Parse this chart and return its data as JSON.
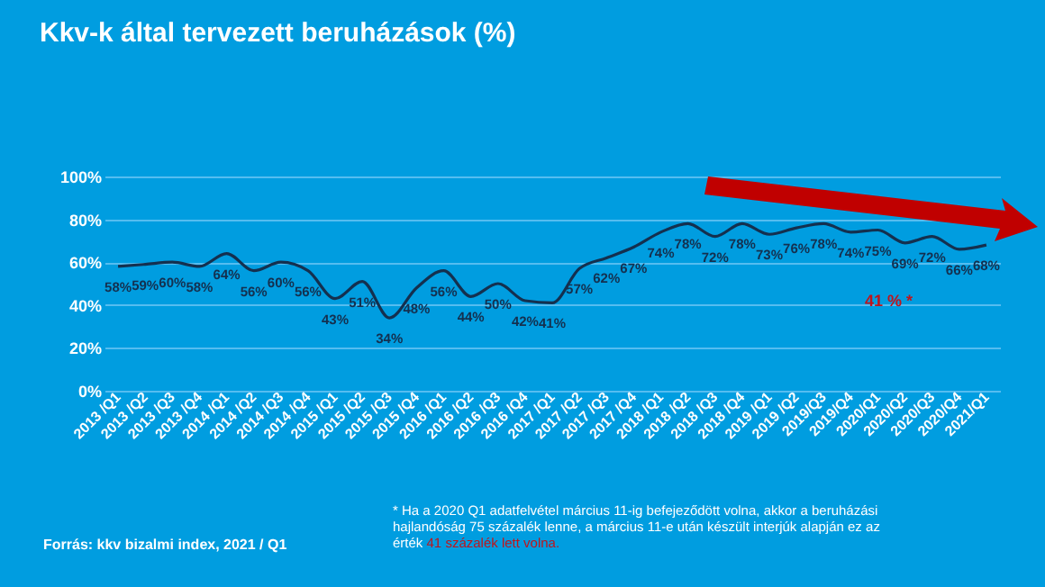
{
  "chart_data": {
    "type": "line",
    "title": "Kkv-k által tervezett beruházások (%)",
    "categories": [
      "2013 /Q1",
      "2013 /Q2",
      "2013 /Q3",
      "2013 /Q4",
      "2014 /Q1",
      "2014 /Q2",
      "2014 /Q3",
      "2014 /Q4",
      "2015 /Q1",
      "2015 /Q2",
      "2015 /Q3",
      "2015 /Q4",
      "2016 /Q1",
      "2016 /Q2",
      "2016 /Q3",
      "2016 /Q4",
      "2017 /Q1",
      "2017 /Q2",
      "2017 /Q3",
      "2017 /Q4",
      "2018 /Q1",
      "2018 /Q2",
      "2018 /Q3",
      "2018 /Q4",
      "2019 /Q1",
      "2019 /Q2",
      "2019/Q3",
      "2019/Q4",
      "2020/Q1",
      "2020/Q2",
      "2020/Q3",
      "2020/Q4",
      "2021/Q1"
    ],
    "series": [
      {
        "color": "#14304f",
        "values": [
          58,
          59,
          60,
          58,
          64,
          56,
          60,
          56,
          43,
          51,
          34,
          48,
          56,
          44,
          50,
          42,
          41,
          57,
          62,
          67,
          74,
          78,
          72,
          78,
          73,
          76,
          78,
          74,
          75,
          69,
          72,
          66,
          68
        ],
        "value_labels": [
          "58%",
          "59%",
          "60%",
          "58%",
          "64%",
          "56%",
          "60%",
          "56%",
          "43%",
          "51%",
          "34%",
          "48%",
          "56%",
          "44%",
          "50%",
          "42%",
          "41%",
          "57%",
          "62%",
          "67%",
          "74%",
          "78%",
          "72%",
          "78%",
          "73%",
          "76%",
          "78%",
          "74%",
          "75%",
          "69%",
          "72%",
          "66%",
          "68%"
        ]
      }
    ],
    "ylim": [
      0,
      100
    ],
    "yticks": [
      {
        "value": 0,
        "label": "0%"
      },
      {
        "value": 20,
        "label": "20%"
      },
      {
        "value": 40,
        "label": "40%"
      },
      {
        "value": 60,
        "label": "60%"
      },
      {
        "value": 80,
        "label": "80%"
      },
      {
        "value": 100,
        "label": "100%"
      }
    ],
    "grid": "y",
    "marker": "none",
    "line_style": "solid",
    "annotations": [
      "41 % *",
      "Forrás: kkv bizalmi index, 2021 / Q1",
      "* Ha a 2020 Q1 adatfelvétel március 11-ig befejeződött volna, akkor a beruházási hajlandóság 75 százalék lenne, a március 11-e után készült interjúk alapján ez az érték",
      "41 százalék lett volna."
    ]
  }
}
